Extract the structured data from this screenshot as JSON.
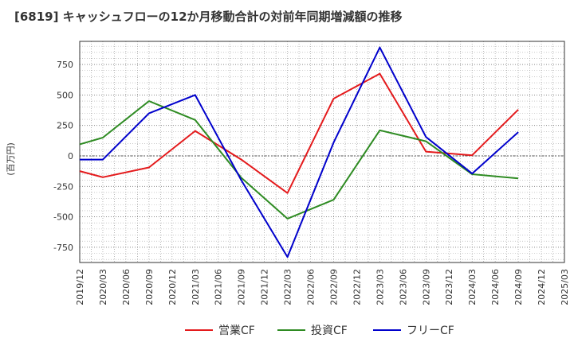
{
  "chart_data": {
    "type": "line",
    "title": "[6819]  キャッシュフローの12か月移動合計の対前年同期増減額の推移",
    "ylabel": "(百万円)",
    "ylim": [
      -875,
      940
    ],
    "yticks": [
      750,
      500,
      250,
      0,
      -250,
      -500,
      -750
    ],
    "ytick_labels": [
      "750",
      "500",
      "250",
      "0",
      "-250",
      "-500",
      "-750"
    ],
    "categories": [
      "2019/12",
      "2020/03",
      "2020/06",
      "2020/09",
      "2020/12",
      "2021/03",
      "2021/06",
      "2021/09",
      "2021/12",
      "2022/03",
      "2022/06",
      "2022/09",
      "2022/12",
      "2023/03",
      "2023/06",
      "2023/09",
      "2023/12",
      "2024/03",
      "2024/06",
      "2024/09",
      "2024/12",
      "2025/03"
    ],
    "grid": true,
    "legend_position": "bottom-center",
    "series": [
      {
        "name": "営業CF",
        "color": "#e41a1c",
        "values": [
          -125,
          -175,
          null,
          -95,
          null,
          205,
          null,
          -30,
          null,
          -305,
          null,
          470,
          null,
          675,
          null,
          35,
          null,
          5,
          null,
          380,
          null,
          null
        ]
      },
      {
        "name": "投資CF",
        "color": "#2e8b22",
        "values": [
          95,
          150,
          null,
          450,
          null,
          295,
          null,
          -180,
          null,
          -515,
          null,
          -360,
          null,
          210,
          null,
          120,
          null,
          -150,
          null,
          -185,
          null,
          null
        ]
      },
      {
        "name": "フリーCF",
        "color": "#0000cc",
        "values": [
          -30,
          -30,
          null,
          350,
          null,
          500,
          null,
          -200,
          null,
          -830,
          null,
          110,
          null,
          890,
          null,
          155,
          null,
          -145,
          null,
          195,
          null,
          null
        ]
      }
    ]
  }
}
